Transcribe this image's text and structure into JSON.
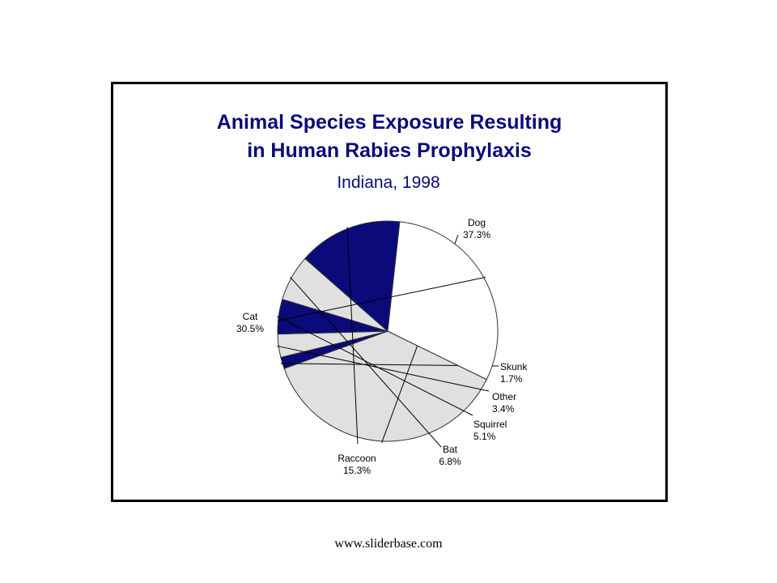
{
  "chart_data": {
    "type": "pie",
    "title_lines": [
      "Animal Species Exposure Resulting",
      "in Human Rabies Prophylaxis"
    ],
    "subtitle": "Indiana, 1998",
    "slices": [
      {
        "name": "Dog",
        "label": "37.3%",
        "value": 37.3,
        "color": "#e0e0e0"
      },
      {
        "name": "Skunk",
        "label": "1.7%",
        "value": 1.7,
        "color": "#0a0a7a"
      },
      {
        "name": "Other",
        "label": "3.4%",
        "value": 3.4,
        "color": "#e0e0e0"
      },
      {
        "name": "Squirrel",
        "label": "5.1%",
        "value": 5.1,
        "color": "#0a0a7a"
      },
      {
        "name": "Bat",
        "label": "6.8%",
        "value": 6.8,
        "color": "#e0e0e0"
      },
      {
        "name": "Raccoon",
        "label": "15.3%",
        "value": 15.3,
        "color": "#0a0a7a"
      },
      {
        "name": "Cat",
        "label": "30.5%",
        "value": 30.5,
        "color": "#ffffff"
      }
    ]
  },
  "footer": "www.sliderbase.com"
}
